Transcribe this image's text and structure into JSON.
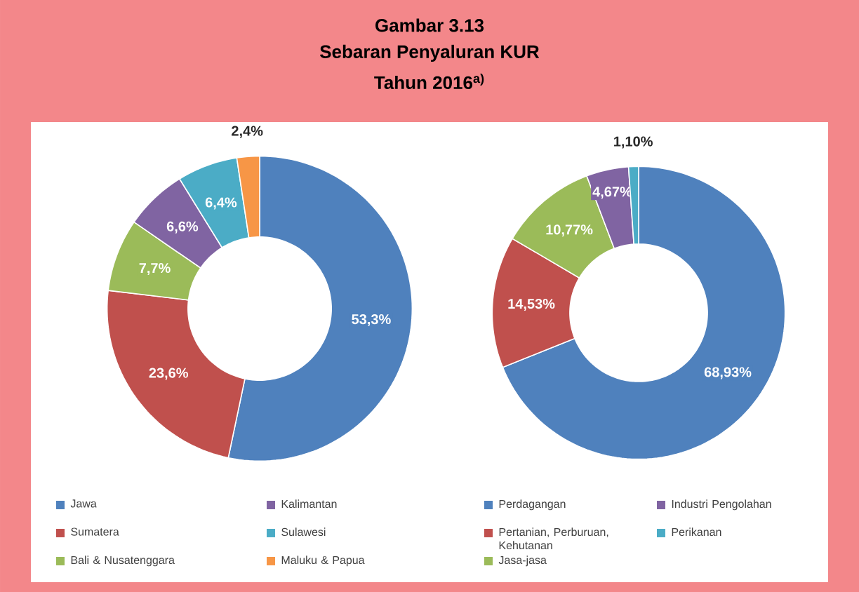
{
  "chart_data": [
    {
      "type": "donut",
      "title": "Gambar 3.13",
      "subtitle": "Sebaran Penyaluran KUR",
      "annotations": [
        "Tahun 2016$^{a)}$"
      ],
      "legend": "bottom",
      "categories": [
        "Jawa",
        "Sumatera",
        "Bali & Nusatenggara",
        "Kalimantan",
        "Sulawesi",
        "Maluku & Papua"
      ],
      "values": [
        53.3,
        23.6,
        7.7,
        6.6,
        6.4,
        2.4
      ],
      "value_labels": [
        "53,3%",
        "23,6%",
        "7,7%",
        "6,6%",
        "6,4%",
        "2,4%"
      ],
      "colors": [
        "#4f81bd",
        "#c0504d",
        "#9bbb59",
        "#8064a2",
        "#4bacc6",
        "#f79646"
      ]
    },
    {
      "type": "donut",
      "legend": "bottom",
      "categories": [
        "Perdagangan",
        "Pertanian, Perburuan, Kehutanan",
        "Jasa-jasa",
        "Industri Pengolahan",
        "Perikanan"
      ],
      "values": [
        68.93,
        14.53,
        10.77,
        4.67,
        1.1
      ],
      "value_labels": [
        "68,93%",
        "14,53%",
        "10,77%",
        "4,67%",
        "1,10%"
      ],
      "colors": [
        "#4f81bd",
        "#c0504d",
        "#9bbb59",
        "#8064a2",
        "#4bacc6"
      ]
    }
  ]
}
